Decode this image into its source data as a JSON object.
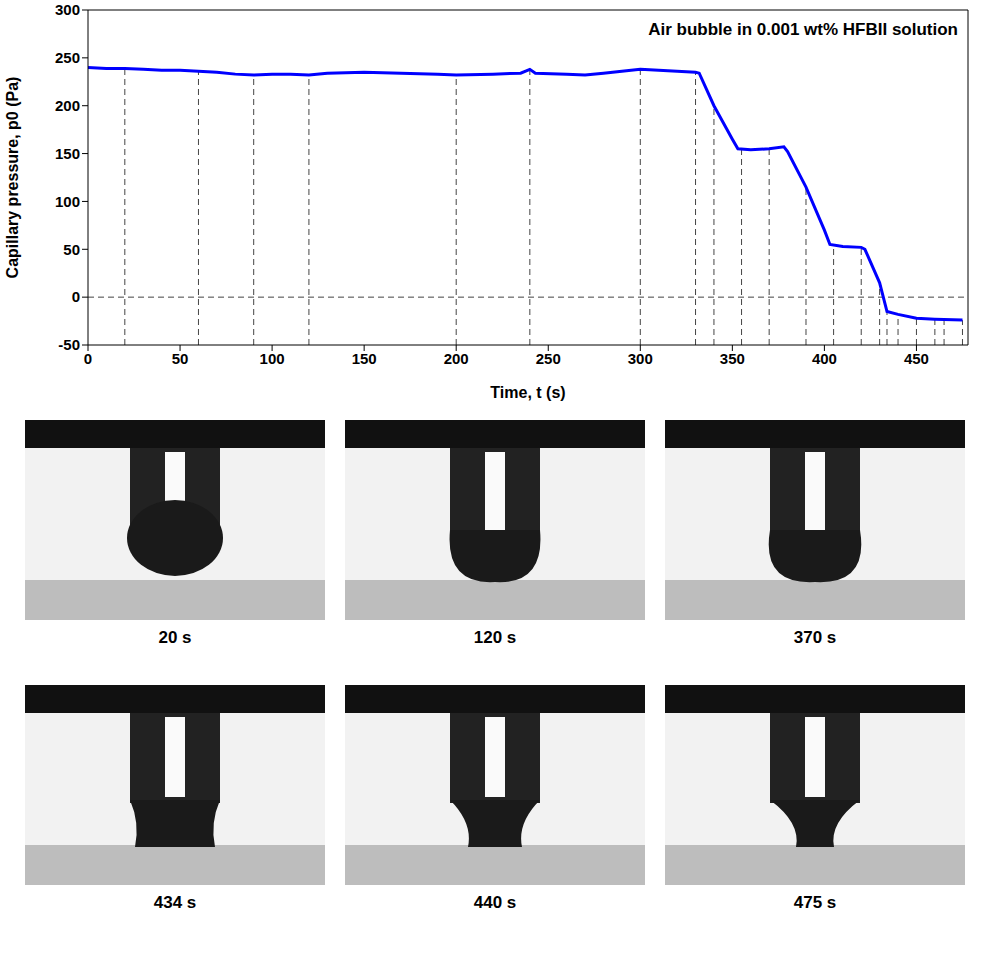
{
  "chart_data": {
    "type": "line",
    "title": "Air bubble in 0.001 wt% HFBII solution",
    "x_label": "Time, t (s)",
    "y_label": "Capillary pressure, p0 (Pa)",
    "x": [
      0,
      10,
      20,
      30,
      40,
      50,
      60,
      70,
      80,
      90,
      100,
      110,
      120,
      130,
      150,
      170,
      190,
      200,
      220,
      235,
      240,
      243,
      260,
      270,
      280,
      290,
      300,
      310,
      320,
      330,
      332,
      340,
      350,
      353,
      360,
      370,
      378,
      380,
      390,
      400,
      403,
      410,
      420,
      422,
      430,
      434,
      440,
      450,
      460,
      475
    ],
    "series": [
      {
        "name": "p0",
        "color": "#0000ff",
        "values": [
          240,
          239,
          239,
          238,
          237,
          237,
          236,
          235,
          233,
          232,
          233,
          233,
          232,
          234,
          235,
          234,
          233,
          232,
          233,
          234,
          238,
          234,
          233,
          232,
          234,
          236,
          238,
          237,
          236,
          235,
          234,
          200,
          165,
          155,
          154,
          155,
          157,
          152,
          115,
          70,
          55,
          53,
          52,
          50,
          15,
          -15,
          -18,
          -22,
          -23,
          -24
        ]
      }
    ],
    "xlim": [
      0,
      478
    ],
    "xticks": [
      0,
      50,
      100,
      150,
      200,
      250,
      300,
      350,
      400,
      450
    ],
    "ylim": [
      -50,
      300
    ],
    "yticks": [
      -50,
      0,
      50,
      100,
      150,
      200,
      250,
      300
    ],
    "reference_lines_x": [
      20,
      60,
      90,
      120,
      200,
      240,
      300,
      330,
      340,
      355,
      370,
      390,
      405,
      420,
      430,
      434,
      440,
      450,
      460,
      465,
      475
    ],
    "reference_lines_y": [
      0
    ],
    "grid": false,
    "line_style": "solid",
    "marker": "none"
  },
  "images": [
    {
      "caption": "20 s"
    },
    {
      "caption": "120 s"
    },
    {
      "caption": "370 s"
    },
    {
      "caption": "434 s"
    },
    {
      "caption": "440 s"
    },
    {
      "caption": "475 s"
    }
  ]
}
